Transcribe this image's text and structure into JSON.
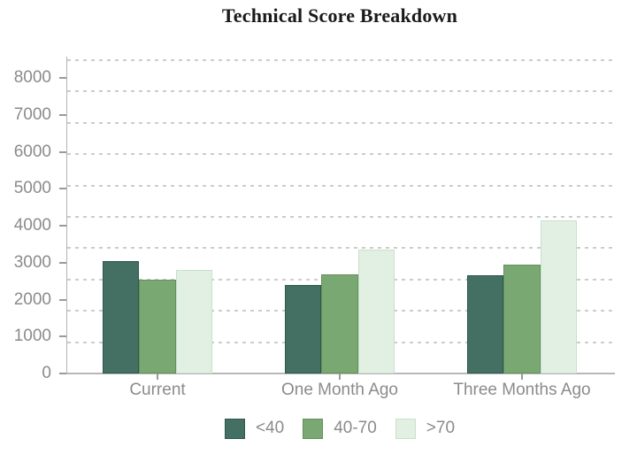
{
  "chart_data": {
    "type": "bar",
    "title": "Technical Score Breakdown",
    "categories": [
      "Current",
      "One Month Ago",
      "Three Months Ago"
    ],
    "category_slugs": [
      "current",
      "one-month-ago",
      "three-months-ago"
    ],
    "series": [
      {
        "name": "<40",
        "slug": "lt40",
        "color": "#447064",
        "border_color": "#2f574c",
        "values": [
          3050,
          2400,
          2650
        ]
      },
      {
        "name": "40-70",
        "slug": "40-70",
        "color": "#7aa873",
        "border_color": "#63905a",
        "values": [
          2550,
          2680,
          2950
        ]
      },
      {
        "name": ">70",
        "slug": "gt70",
        "color": "#e2f0e3",
        "border_color": "#c8e1ca",
        "values": [
          2800,
          3350,
          4150
        ]
      }
    ],
    "yticks": [
      0,
      1000,
      2000,
      3000,
      4000,
      5000,
      6000,
      7000,
      8000
    ],
    "ylim": [
      0,
      8600
    ],
    "xlabel": "",
    "ylabel": "",
    "grid": "dashed horizontal",
    "legend_position": "bottom",
    "colors": {
      "axis_label": "#8b8b8b",
      "axis_line": "#b8b8b8",
      "gridline": "#cccccc",
      "title": "#1a1a1a",
      "background": "#ffffff"
    }
  }
}
